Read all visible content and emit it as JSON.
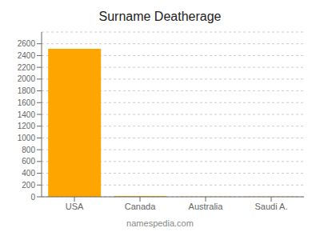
{
  "chart_data": {
    "type": "bar",
    "title": "Surname Deatherage",
    "categories": [
      "USA",
      "Canada",
      "Australia",
      "Saudi A."
    ],
    "values": [
      2516,
      14,
      2,
      2
    ],
    "color": "#FFA500",
    "ylim": [
      0,
      2800
    ],
    "yticks": [
      0,
      200,
      400,
      600,
      800,
      1000,
      1200,
      1400,
      1600,
      1800,
      2000,
      2200,
      2400,
      2600
    ],
    "grid": true,
    "annotations": [
      "namespedia.com"
    ]
  }
}
